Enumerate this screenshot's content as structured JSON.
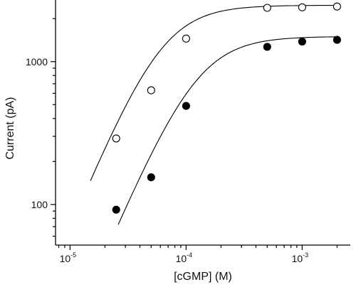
{
  "chart_data": {
    "type": "scatter",
    "title": "",
    "xlabel": "[cGMP] (M)",
    "ylabel": "Current (pA)",
    "xscale": "log",
    "yscale": "log",
    "xlim": [
      7.5e-06,
      0.0026
    ],
    "ylim": [
      52,
      2700
    ],
    "x_ticks": [
      {
        "value": 1e-05,
        "base": "10",
        "exp": "-5"
      },
      {
        "value": 0.0001,
        "base": "10",
        "exp": "-4"
      },
      {
        "value": 0.001,
        "base": "10",
        "exp": "-3"
      }
    ],
    "y_ticks": [
      {
        "value": 100,
        "label": "100"
      },
      {
        "value": 1000,
        "label": "1000"
      }
    ],
    "grid": false,
    "series": [
      {
        "marker": "open-circle",
        "x": [
          2.5e-05,
          5e-05,
          0.0001,
          0.0005,
          0.001,
          0.002
        ],
        "y": [
          290,
          630,
          1450,
          2380,
          2400,
          2430
        ],
        "fit": {
          "imax": 2480,
          "k": 6.2e-05,
          "n": 1.95,
          "x_from": 1.5e-05,
          "x_to": 0.002
        }
      },
      {
        "marker": "filled-circle",
        "x": [
          2.5e-05,
          5e-05,
          0.0001,
          0.0005,
          0.001,
          0.002
        ],
        "y": [
          92,
          155,
          490,
          1270,
          1380,
          1420
        ],
        "fit": {
          "imax": 1500,
          "k": 0.000125,
          "n": 1.9,
          "x_from": 2.6e-05,
          "x_to": 0.002
        }
      }
    ]
  }
}
